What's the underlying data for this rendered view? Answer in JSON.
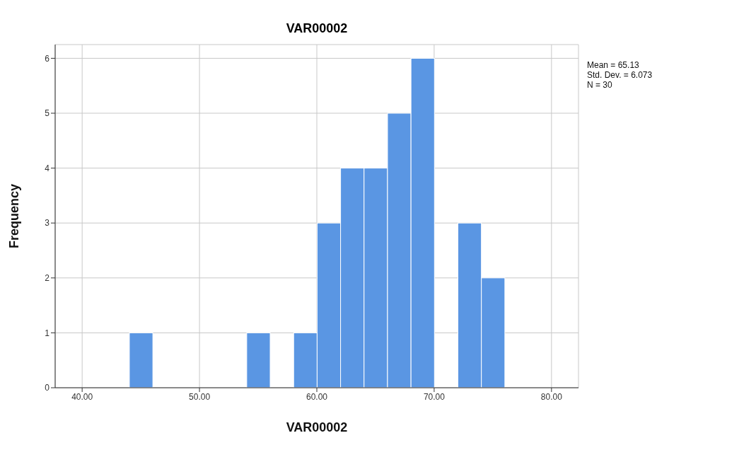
{
  "chart_data": {
    "type": "histogram",
    "title": "VAR00002",
    "xlabel": "VAR00002",
    "ylabel": "Frequency",
    "bins": [
      44,
      46,
      48,
      50,
      52,
      54,
      56,
      58,
      60,
      62,
      64,
      66,
      68,
      70,
      72,
      74,
      76
    ],
    "values": [
      1,
      0,
      0,
      0,
      0,
      1,
      0,
      1,
      3,
      4,
      4,
      5,
      6,
      0,
      3,
      2
    ],
    "color": "#5a96e3",
    "xlim": [
      37.7,
      82.3
    ],
    "xticks": [
      {
        "value": 40,
        "label": "40.00"
      },
      {
        "value": 50,
        "label": "50.00"
      },
      {
        "value": 60,
        "label": "60.00"
      },
      {
        "value": 70,
        "label": "70.00"
      },
      {
        "value": 80,
        "label": "80.00"
      }
    ],
    "ylim": [
      0,
      6.25
    ],
    "yticks": [
      0,
      1,
      2,
      3,
      4,
      5,
      6
    ],
    "grid": true,
    "annotations": [
      "Mean = 65.13",
      "Std. Dev. = 6.073",
      "N = 30"
    ]
  }
}
